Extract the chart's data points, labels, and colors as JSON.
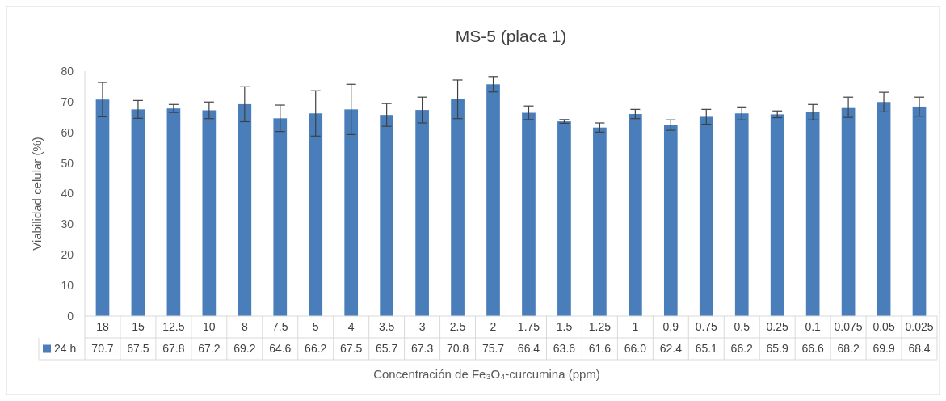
{
  "chart_data": {
    "type": "bar",
    "title": "MS-5 (placa 1)",
    "xlabel": "Concentración de Fe₃O₄-curcumina (ppm)",
    "ylabel": "Viabilidad celular (%)",
    "categories": [
      "18",
      "15",
      "12.5",
      "10",
      "8",
      "7.5",
      "5",
      "4",
      "3.5",
      "3",
      "2.5",
      "2",
      "1.75",
      "1.5",
      "1.25",
      "1",
      "0.9",
      "0.75",
      "0.5",
      "0.25",
      "0.1",
      "0.075",
      "0.05",
      "0.025"
    ],
    "series": [
      {
        "name": "24 h",
        "color": "#4a7ebb",
        "values": [
          70.7,
          67.5,
          67.8,
          67.2,
          69.2,
          64.6,
          66.2,
          67.5,
          65.7,
          67.3,
          70.8,
          75.7,
          66.4,
          63.6,
          61.6,
          66.0,
          62.4,
          65.1,
          66.2,
          65.9,
          66.6,
          68.2,
          69.9,
          68.4
        ],
        "value_labels": [
          "70.7",
          "67.5",
          "67.8",
          "67.2",
          "69.2",
          "64.6",
          "66.2",
          "67.5",
          "65.7",
          "67.3",
          "70.8",
          "75.7",
          "66.4",
          "63.6",
          "61.6",
          "66.0",
          "62.4",
          "65.1",
          "66.2",
          "65.9",
          "66.6",
          "68.2",
          "69.9",
          "68.4"
        ],
        "errors": [
          5.6,
          2.9,
          1.3,
          2.7,
          5.7,
          4.3,
          7.4,
          8.2,
          3.7,
          4.2,
          6.3,
          2.5,
          2.2,
          0.6,
          1.5,
          1.5,
          1.7,
          2.4,
          2.1,
          1.1,
          2.5,
          3.3,
          3.2,
          3.1
        ]
      }
    ],
    "ylim": [
      0,
      80
    ],
    "yticks": [
      0,
      10,
      20,
      30,
      40,
      50,
      60,
      70,
      80
    ]
  }
}
